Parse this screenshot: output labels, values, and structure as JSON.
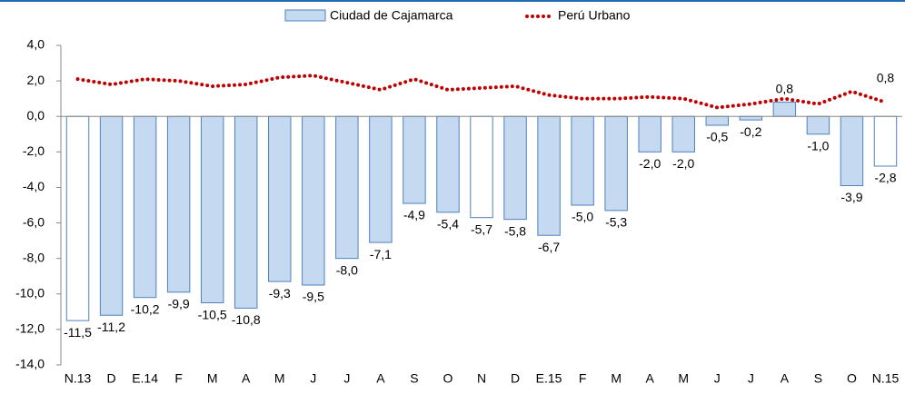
{
  "chart_data": {
    "type": "bar",
    "categories": [
      "N.13",
      "D",
      "E.14",
      "F",
      "M",
      "A",
      "M",
      "J",
      "J",
      "A",
      "S",
      "O",
      "N",
      "D",
      "E.15",
      "F",
      "M",
      "A",
      "M",
      "J",
      "J",
      "A",
      "S",
      "O",
      "N.15"
    ],
    "series": [
      {
        "name": "Ciudad de Cajamarca",
        "type": "bar",
        "color": "#c5d9f1",
        "stroke": "#4f81bd",
        "colors": [
          "#ffffff",
          "#c5d9f1",
          "#c5d9f1",
          "#c5d9f1",
          "#c5d9f1",
          "#c5d9f1",
          "#c5d9f1",
          "#c5d9f1",
          "#c5d9f1",
          "#c5d9f1",
          "#c5d9f1",
          "#c5d9f1",
          "#ffffff",
          "#c5d9f1",
          "#c5d9f1",
          "#c5d9f1",
          "#c5d9f1",
          "#c5d9f1",
          "#c5d9f1",
          "#c5d9f1",
          "#c5d9f1",
          "#c5d9f1",
          "#c5d9f1",
          "#c5d9f1",
          "#ffffff"
        ],
        "values": [
          -11.5,
          -11.2,
          -10.2,
          -9.9,
          -10.5,
          -10.8,
          -9.3,
          -9.5,
          -8.0,
          -7.1,
          -4.9,
          -5.4,
          -5.7,
          -5.8,
          -6.7,
          -5.0,
          -5.3,
          -2.0,
          -2.0,
          -0.5,
          -0.2,
          0.8,
          -1.0,
          -3.9,
          -2.8
        ],
        "value_labels": [
          "-11,5",
          "-11,2",
          "-10,2",
          "-9,9",
          "-10,5",
          "-10,8",
          "-9,3",
          "-9,5",
          "-8,0",
          "-7,1",
          "-4,9",
          "-5,4",
          "-5,7",
          "-5,8",
          "-6,7",
          "-5,0",
          "-5,3",
          "-2,0",
          "-2,0",
          "-0,5",
          "-0,2",
          "0,8",
          "-1,0",
          "-3,9",
          "-2,8"
        ]
      },
      {
        "name": "Perú Urbano",
        "type": "line",
        "color": "#c00000",
        "values": [
          2.1,
          1.8,
          2.1,
          2.0,
          1.7,
          1.8,
          2.2,
          2.3,
          1.9,
          1.5,
          2.1,
          1.5,
          1.6,
          1.7,
          1.2,
          1.0,
          1.0,
          1.1,
          1.0,
          0.5,
          0.7,
          1.0,
          0.7,
          1.4,
          0.8
        ],
        "value_labels": [
          null,
          null,
          null,
          null,
          null,
          null,
          null,
          null,
          null,
          null,
          null,
          null,
          null,
          null,
          null,
          null,
          null,
          null,
          null,
          null,
          null,
          null,
          null,
          null,
          "0,8"
        ]
      }
    ],
    "ylim": [
      -14,
      4
    ],
    "yticks": [
      {
        "value": 4,
        "label": "4,0"
      },
      {
        "value": 2,
        "label": "2,0"
      },
      {
        "value": 0,
        "label": "0,0"
      },
      {
        "value": -2,
        "label": "-2,0"
      },
      {
        "value": -4,
        "label": "-4,0"
      },
      {
        "value": -6,
        "label": "-6,0"
      },
      {
        "value": -8,
        "label": "-8,0"
      },
      {
        "value": -10,
        "label": "-10,0"
      },
      {
        "value": -12,
        "label": "-12,0"
      },
      {
        "value": -14,
        "label": "-14,0"
      }
    ],
    "legend": "top"
  }
}
